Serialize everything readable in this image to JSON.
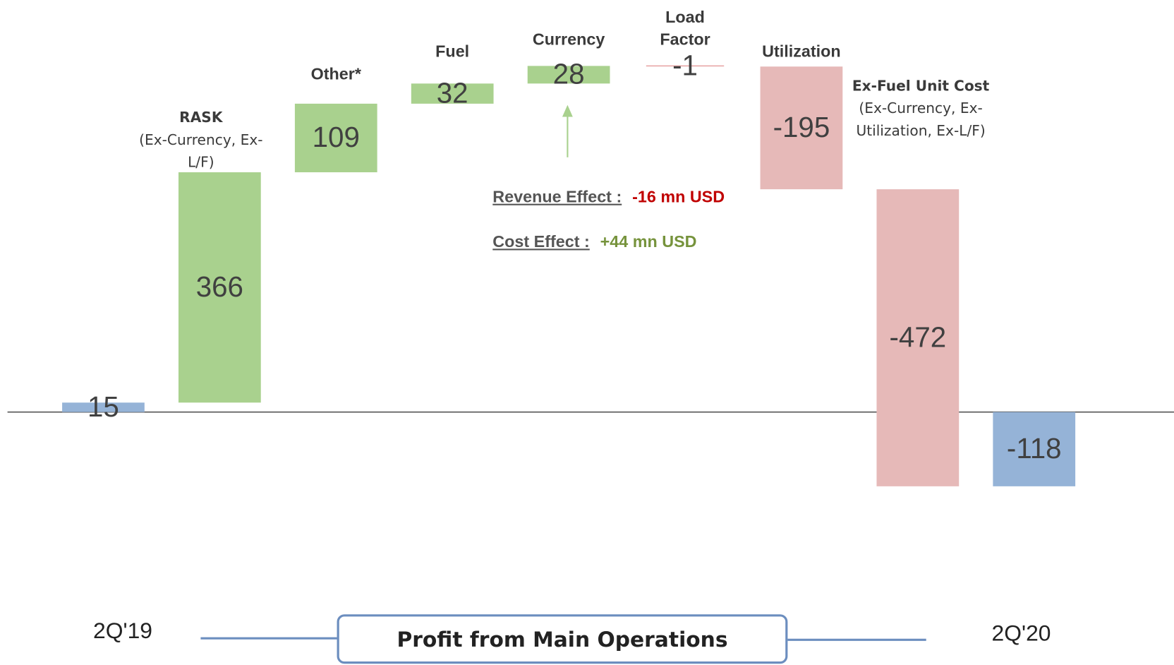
{
  "chart_data": {
    "type": "waterfall",
    "categories": [
      "2Q'19",
      "RASK",
      "Other*",
      "Fuel",
      "Currency",
      "Load Factor",
      "Utilization",
      "Ex-Fuel Unit Cost",
      "2Q'20"
    ],
    "category_notes": [
      null,
      "(Ex-Currency, Ex-L/F)",
      null,
      null,
      null,
      null,
      null,
      "(Ex-Currency, Ex-Utilization, Ex-L/F)",
      null
    ],
    "values": [
      15,
      366,
      109,
      32,
      28,
      -1,
      -195,
      -472,
      -118
    ],
    "totals": [
      true,
      false,
      false,
      false,
      false,
      false,
      false,
      false,
      true
    ],
    "colors": {
      "total": "#95b3d7",
      "increase": "#a9d18e",
      "decrease": "#e6b9b8"
    },
    "annotations": [
      {
        "label": "Revenue Effect :",
        "value": "-16 mn USD",
        "color": "#c00000"
      },
      {
        "label": "Cost Effect :",
        "value": "+44 mn USD",
        "color": "#76933c"
      }
    ],
    "footer": "Profit from Main Operations"
  }
}
